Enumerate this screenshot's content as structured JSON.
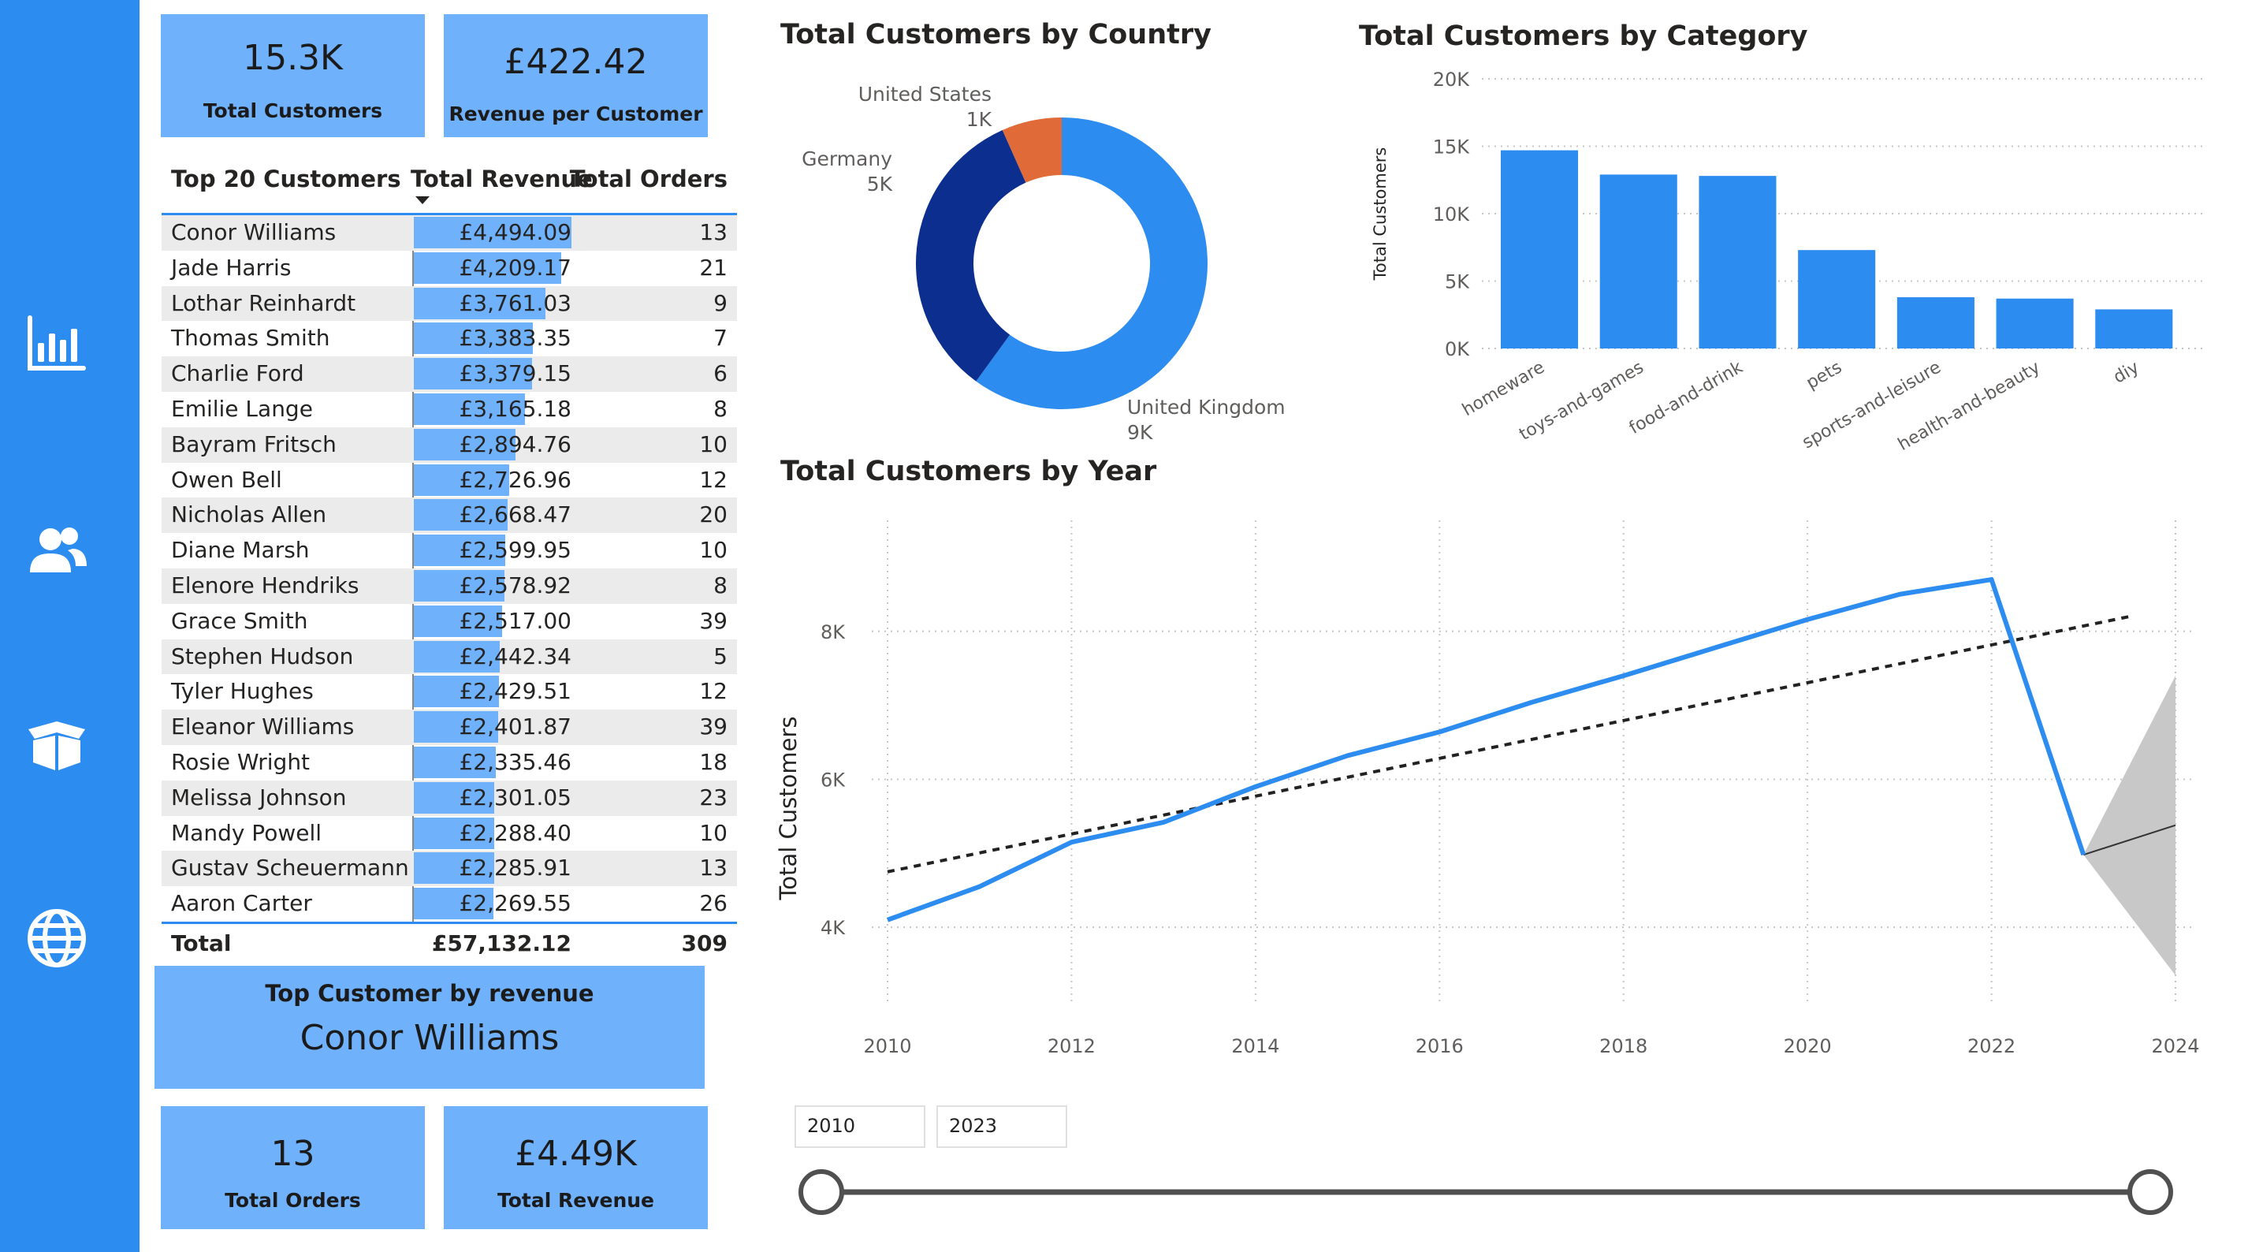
{
  "sidebar": {
    "items": [
      {
        "icon": "bar-chart-icon"
      },
      {
        "icon": "users-icon"
      },
      {
        "icon": "box-icon"
      },
      {
        "icon": "globe-icon"
      }
    ]
  },
  "cards": {
    "total_customers": {
      "value": "15.3K",
      "label": "Total Customers"
    },
    "revenue_per_customer": {
      "value": "£422.42",
      "label": "Revenue per Customer"
    },
    "top_customer": {
      "label": "Top Customer by revenue",
      "value": "Conor Williams"
    },
    "total_orders": {
      "value": "13",
      "label": "Total Orders"
    },
    "total_revenue": {
      "value": "£4.49K",
      "label": "Total Revenue"
    }
  },
  "table": {
    "headers": [
      "Top 20 Customers",
      "Total Revenue",
      "Total Orders"
    ],
    "rows": [
      {
        "name": "Conor Williams",
        "revenue": "£4,494.09",
        "revenue_value": 4494.09,
        "orders": "13"
      },
      {
        "name": "Jade Harris",
        "revenue": "£4,209.17",
        "revenue_value": 4209.17,
        "orders": "21"
      },
      {
        "name": "Lothar Reinhardt",
        "revenue": "£3,761.03",
        "revenue_value": 3761.03,
        "orders": "9"
      },
      {
        "name": "Thomas Smith",
        "revenue": "£3,383.35",
        "revenue_value": 3383.35,
        "orders": "7"
      },
      {
        "name": "Charlie Ford",
        "revenue": "£3,379.15",
        "revenue_value": 3379.15,
        "orders": "6"
      },
      {
        "name": "Emilie Lange",
        "revenue": "£3,165.18",
        "revenue_value": 3165.18,
        "orders": "8"
      },
      {
        "name": "Bayram Fritsch",
        "revenue": "£2,894.76",
        "revenue_value": 2894.76,
        "orders": "10"
      },
      {
        "name": "Owen Bell",
        "revenue": "£2,726.96",
        "revenue_value": 2726.96,
        "orders": "12"
      },
      {
        "name": "Nicholas Allen",
        "revenue": "£2,668.47",
        "revenue_value": 2668.47,
        "orders": "20"
      },
      {
        "name": "Diane Marsh",
        "revenue": "£2,599.95",
        "revenue_value": 2599.95,
        "orders": "10"
      },
      {
        "name": "Elenore Hendriks",
        "revenue": "£2,578.92",
        "revenue_value": 2578.92,
        "orders": "8"
      },
      {
        "name": "Grace Smith",
        "revenue": "£2,517.00",
        "revenue_value": 2517.0,
        "orders": "39"
      },
      {
        "name": "Stephen Hudson",
        "revenue": "£2,442.34",
        "revenue_value": 2442.34,
        "orders": "5"
      },
      {
        "name": "Tyler Hughes",
        "revenue": "£2,429.51",
        "revenue_value": 2429.51,
        "orders": "12"
      },
      {
        "name": "Eleanor Williams",
        "revenue": "£2,401.87",
        "revenue_value": 2401.87,
        "orders": "39"
      },
      {
        "name": "Rosie Wright",
        "revenue": "£2,335.46",
        "revenue_value": 2335.46,
        "orders": "18"
      },
      {
        "name": "Melissa Johnson",
        "revenue": "£2,301.05",
        "revenue_value": 2301.05,
        "orders": "23"
      },
      {
        "name": "Mandy Powell",
        "revenue": "£2,288.40",
        "revenue_value": 2288.4,
        "orders": "10"
      },
      {
        "name": "Gustav Scheuermann",
        "revenue": "£2,285.91",
        "revenue_value": 2285.91,
        "orders": "13"
      },
      {
        "name": "Aaron Carter",
        "revenue": "£2,269.55",
        "revenue_value": 2269.55,
        "orders": "26"
      }
    ],
    "total": {
      "label": "Total",
      "revenue": "£57,132.12",
      "orders": "309"
    }
  },
  "slicer": {
    "start": "2010",
    "end": "2023"
  },
  "chart_data": [
    {
      "type": "pie",
      "title": "Total Customers by Country",
      "categories": [
        "United Kingdom",
        "Germany",
        "United States"
      ],
      "values": [
        9,
        5,
        1
      ],
      "labels": [
        "9K",
        "5K",
        "1K"
      ],
      "colors": [
        "#2d8cf0",
        "#0c2f8f",
        "#e06b38"
      ]
    },
    {
      "type": "bar",
      "title": "Total Customers by Category",
      "ylabel": "Total Customers",
      "categories": [
        "homeware",
        "toys-and-games",
        "food-and-drink",
        "pets",
        "sports-and-leisure",
        "health-and-beauty",
        "diy"
      ],
      "values": [
        14700,
        12900,
        12800,
        7300,
        3800,
        3700,
        2900
      ],
      "ylim": [
        0,
        20000
      ],
      "yticks": [
        "0K",
        "5K",
        "10K",
        "15K",
        "20K"
      ],
      "color": "#2d8cf0"
    },
    {
      "type": "line",
      "title": "Total Customers by Year",
      "ylabel": "Total Customers",
      "x": [
        2010,
        2011,
        2012,
        2013,
        2014,
        2015,
        2016,
        2017,
        2018,
        2019,
        2020,
        2021,
        2022,
        2023
      ],
      "series": [
        {
          "values": [
            4100,
            4550,
            5150,
            5420,
            5900,
            6320,
            6640,
            7040,
            7400,
            7780,
            8160,
            8500,
            8700,
            4980
          ],
          "color": "#2d8cf0"
        }
      ],
      "trend": {
        "from": [
          2010,
          4750
        ],
        "to": [
          2023.5,
          8200
        ]
      },
      "forecast": {
        "x": [
          2023,
          2024
        ],
        "value": [
          4980,
          5380
        ],
        "upper": [
          4980,
          7400
        ],
        "lower": [
          4980,
          3350
        ]
      },
      "xticks": [
        "2010",
        "2012",
        "2014",
        "2016",
        "2018",
        "2020",
        "2022",
        "2024"
      ],
      "yticks": [
        "4K",
        "6K",
        "8K"
      ],
      "xlim": [
        2010,
        2024
      ],
      "ylim": [
        3000,
        9500
      ]
    }
  ]
}
